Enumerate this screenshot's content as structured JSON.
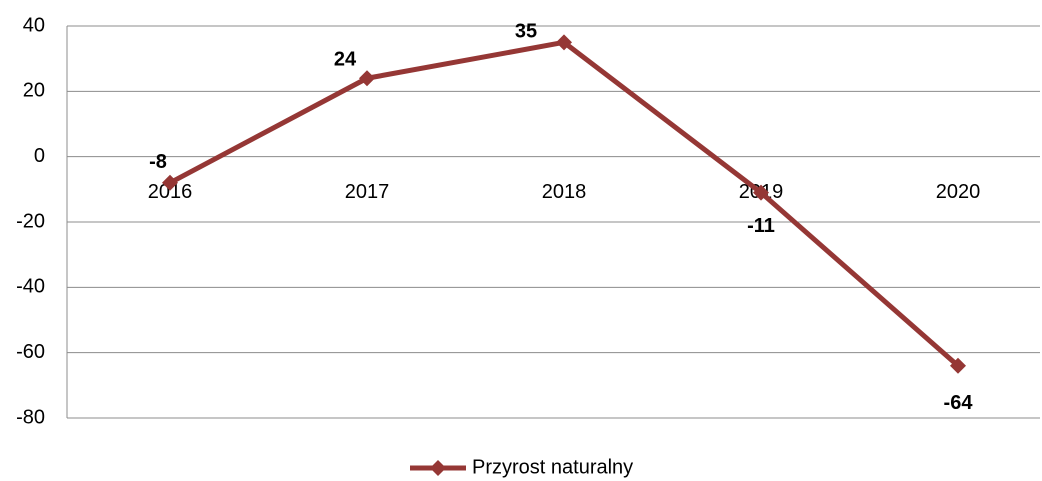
{
  "chart_data": {
    "type": "line",
    "categories": [
      "2016",
      "2017",
      "2018",
      "2019",
      "2020"
    ],
    "series": [
      {
        "name": "Przyrost naturalny",
        "color": "#953735",
        "values": [
          -8,
          24,
          35,
          -11,
          -64
        ]
      }
    ],
    "ylim": [
      -80,
      40
    ],
    "yticks": [
      -80,
      -60,
      -40,
      -20,
      0,
      20,
      40
    ],
    "grid": true,
    "legend": "bottom"
  }
}
